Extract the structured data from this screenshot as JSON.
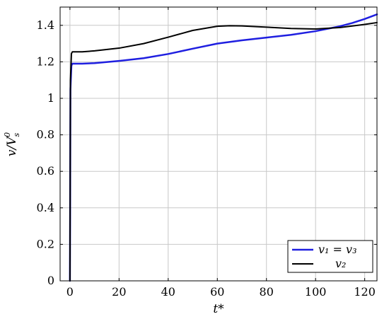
{
  "chart_data": {
    "type": "line",
    "title": "",
    "xlabel": "t*",
    "ylabel": "v/V_s^0",
    "xlim": [
      -4,
      125
    ],
    "ylim": [
      0,
      1.5
    ],
    "xticks": [
      0,
      20,
      40,
      60,
      80,
      100,
      120
    ],
    "xtick_labels": [
      "0",
      "20",
      "40",
      "60",
      "80",
      "100",
      "120"
    ],
    "yticks": [
      0,
      0.2,
      0.4,
      0.6,
      0.8,
      1,
      1.2,
      1.4
    ],
    "ytick_labels": [
      "0",
      "0.2",
      "0.4",
      "0.6",
      "0.8",
      "1",
      "1.2",
      "1.4"
    ],
    "grid": true,
    "legend": {
      "position": "bottom-right",
      "entries": [
        "v₁ = v₃",
        "v₂"
      ]
    },
    "series": [
      {
        "name": "v₁ = v₃",
        "color": "#1f1fe0",
        "x": [
          0,
          0.2,
          0.6,
          1,
          5,
          10,
          20,
          30,
          40,
          50,
          60,
          70,
          80,
          90,
          100,
          110,
          115,
          120,
          125
        ],
        "y": [
          0,
          1.05,
          1.18,
          1.19,
          1.19,
          1.193,
          1.205,
          1.22,
          1.243,
          1.272,
          1.3,
          1.318,
          1.333,
          1.348,
          1.368,
          1.395,
          1.413,
          1.435,
          1.46
        ]
      },
      {
        "name": "v₂",
        "color": "#000000",
        "x": [
          0,
          0.2,
          0.6,
          1,
          5,
          10,
          20,
          30,
          40,
          50,
          60,
          65,
          70,
          80,
          90,
          100,
          110,
          120,
          125
        ],
        "y": [
          0,
          1.1,
          1.245,
          1.255,
          1.255,
          1.26,
          1.275,
          1.3,
          1.335,
          1.372,
          1.395,
          1.398,
          1.397,
          1.39,
          1.383,
          1.38,
          1.388,
          1.405,
          1.415
        ]
      }
    ]
  }
}
